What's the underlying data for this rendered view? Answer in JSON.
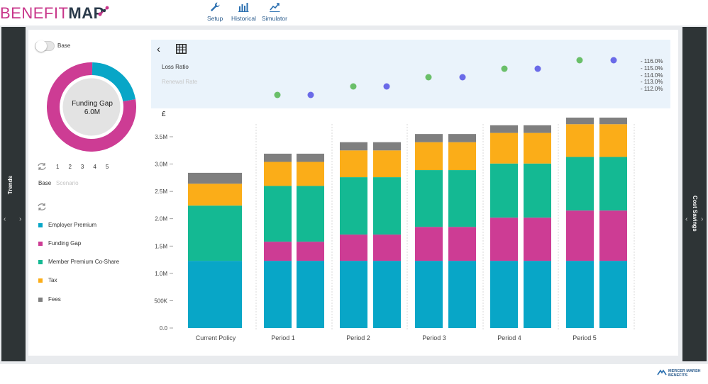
{
  "app": {
    "logo_part1": "BENEFIT",
    "logo_part2": "MAP",
    "footer_brand_line1": "MERCER MARSH",
    "footer_brand_line2": "BENEFITS"
  },
  "nav": [
    {
      "label": "Setup",
      "icon": "wrench-icon"
    },
    {
      "label": "Historical",
      "icon": "bar-chart-icon"
    },
    {
      "label": "Simulator",
      "icon": "line-chart-icon"
    }
  ],
  "side_tabs": {
    "left": "Trends",
    "right": "Cost Savings"
  },
  "left_panel": {
    "toggle_label": "Base",
    "donut_title": "Funding Gap",
    "donut_value": "6.0M",
    "donut_share_funding_gap": 0.78,
    "donut_share_employer": 0.22,
    "scenario_numbers": [
      "1",
      "2",
      "3",
      "4",
      "5"
    ],
    "base_label": "Base",
    "scenario_label": "Scenario",
    "legend": [
      {
        "label": "Employer Premium",
        "color": "#08a6c7"
      },
      {
        "label": "Funding Gap",
        "color": "#cd3c94"
      },
      {
        "label": "Member Premium Co-Share",
        "color": "#14b993"
      },
      {
        "label": "Tax",
        "color": "#fbad18"
      },
      {
        "label": "Fees",
        "color": "#7f7f7f"
      }
    ]
  },
  "top_chart": {
    "loss_ratio_label": "Loss Ratio",
    "renewal_rate_label": "Renewal Rate",
    "y_ticks": [
      "116.0%",
      "115.0%",
      "114.0%",
      "113.0%",
      "112.0%"
    ],
    "green_color": "#6abf69",
    "blue_color": "#6a6ae8"
  },
  "chart_data": {
    "type": "bar",
    "stacked": true,
    "currency_label": "£",
    "y_tick_labels": [
      "0.0",
      "500K",
      "1.0M",
      "1.5M",
      "2.0M",
      "2.5M",
      "3.0M",
      "3.5M"
    ],
    "ylim": [
      0,
      3800000
    ],
    "categories": [
      "Current Policy",
      "Period 1",
      "Period 2",
      "Period 3",
      "Period 4",
      "Period 5"
    ],
    "bars_per_group": [
      1,
      2,
      2,
      2,
      2,
      2
    ],
    "series": [
      {
        "name": "Employer Premium",
        "color": "#08a6c7",
        "values": [
          1230000,
          1230000,
          1230000,
          1230000,
          1230000,
          1230000
        ]
      },
      {
        "name": "Funding Gap",
        "color": "#cd3c94",
        "values": [
          0,
          350000,
          480000,
          620000,
          790000,
          920000
        ]
      },
      {
        "name": "Member Premium Co-Share",
        "color": "#14b993",
        "values": [
          1010000,
          1020000,
          1050000,
          1040000,
          990000,
          980000
        ]
      },
      {
        "name": "Tax",
        "color": "#fbad18",
        "values": [
          400000,
          440000,
          490000,
          510000,
          560000,
          600000
        ]
      },
      {
        "name": "Fees",
        "color": "#7f7f7f",
        "values": [
          200000,
          150000,
          150000,
          150000,
          140000,
          120000
        ]
      }
    ]
  }
}
